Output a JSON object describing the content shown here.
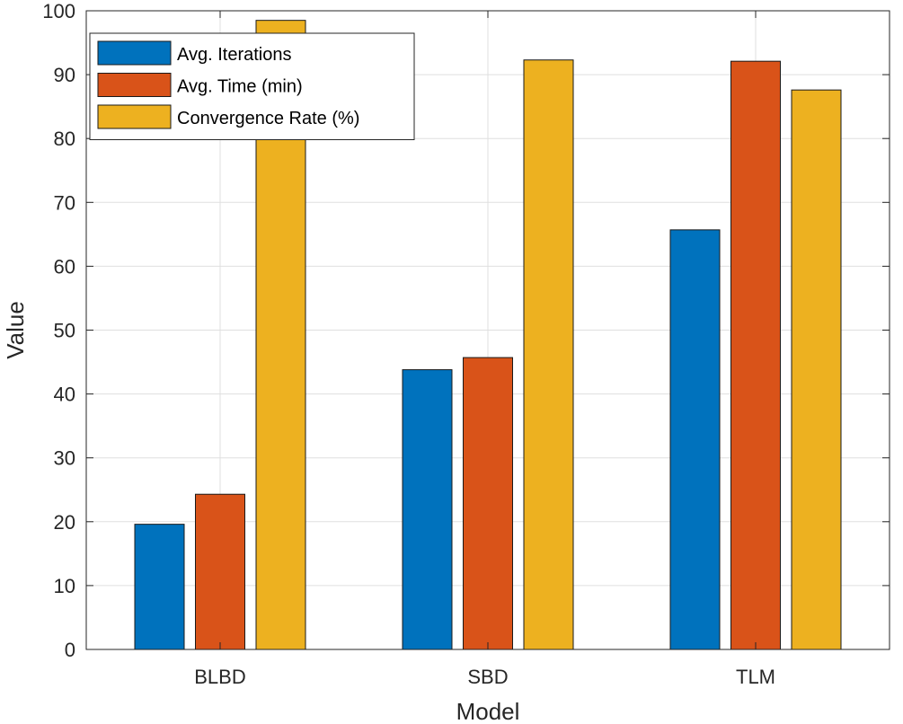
{
  "chart_data": {
    "type": "bar",
    "title": "",
    "xlabel": "Model",
    "ylabel": "Value",
    "categories": [
      "BLBD",
      "SBD",
      "TLM"
    ],
    "series": [
      {
        "name": "Avg. Iterations",
        "color": "#0072BD",
        "values": [
          19.6,
          43.8,
          65.7
        ]
      },
      {
        "name": "Avg. Time (min)",
        "color": "#D95319",
        "values": [
          24.3,
          45.7,
          92.1
        ]
      },
      {
        "name": "Convergence Rate (%)",
        "color": "#EDB120",
        "values": [
          98.5,
          92.3,
          87.6
        ]
      }
    ],
    "ylim": [
      0,
      100
    ],
    "yticks": [
      "0",
      "10",
      "20",
      "30",
      "40",
      "50",
      "60",
      "70",
      "80",
      "90",
      "100"
    ],
    "grid": true,
    "legend_position": "top-left"
  }
}
